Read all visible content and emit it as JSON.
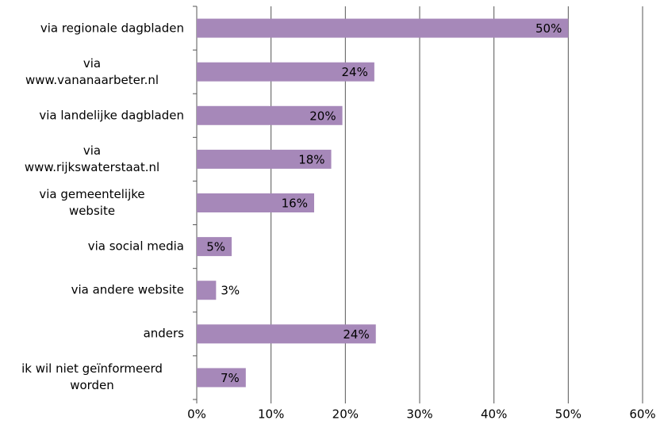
{
  "chart_data": {
    "type": "hbar",
    "categories": [
      "via regionale dagbladen",
      "via\nwww.vananaarbeter.nl",
      "via landelijke dagbladen",
      "via\nwww.rijkswaterstaat.nl",
      "via gemeentelijke\nwebsite",
      "via social media",
      "via andere website",
      "anders",
      "ik wil niet geïnformeerd\nworden"
    ],
    "values": [
      50,
      23.9,
      19.6,
      18.1,
      15.8,
      4.7,
      2.6,
      24.1,
      6.6
    ],
    "value_labels": [
      "50%",
      "24%",
      "20%",
      "18%",
      "16%",
      "5%",
      "3%",
      "24%",
      "7%"
    ],
    "color": "#a688b9",
    "xlim": [
      0,
      60
    ],
    "xticks": [
      {
        "value": 0,
        "label": "0%"
      },
      {
        "value": 10,
        "label": "10%"
      },
      {
        "value": 20,
        "label": "20%"
      },
      {
        "value": 30,
        "label": "30%"
      },
      {
        "value": 40,
        "label": "40%"
      },
      {
        "value": 50,
        "label": "50%"
      },
      {
        "value": 60,
        "label": "60%"
      }
    ],
    "grid": true
  }
}
